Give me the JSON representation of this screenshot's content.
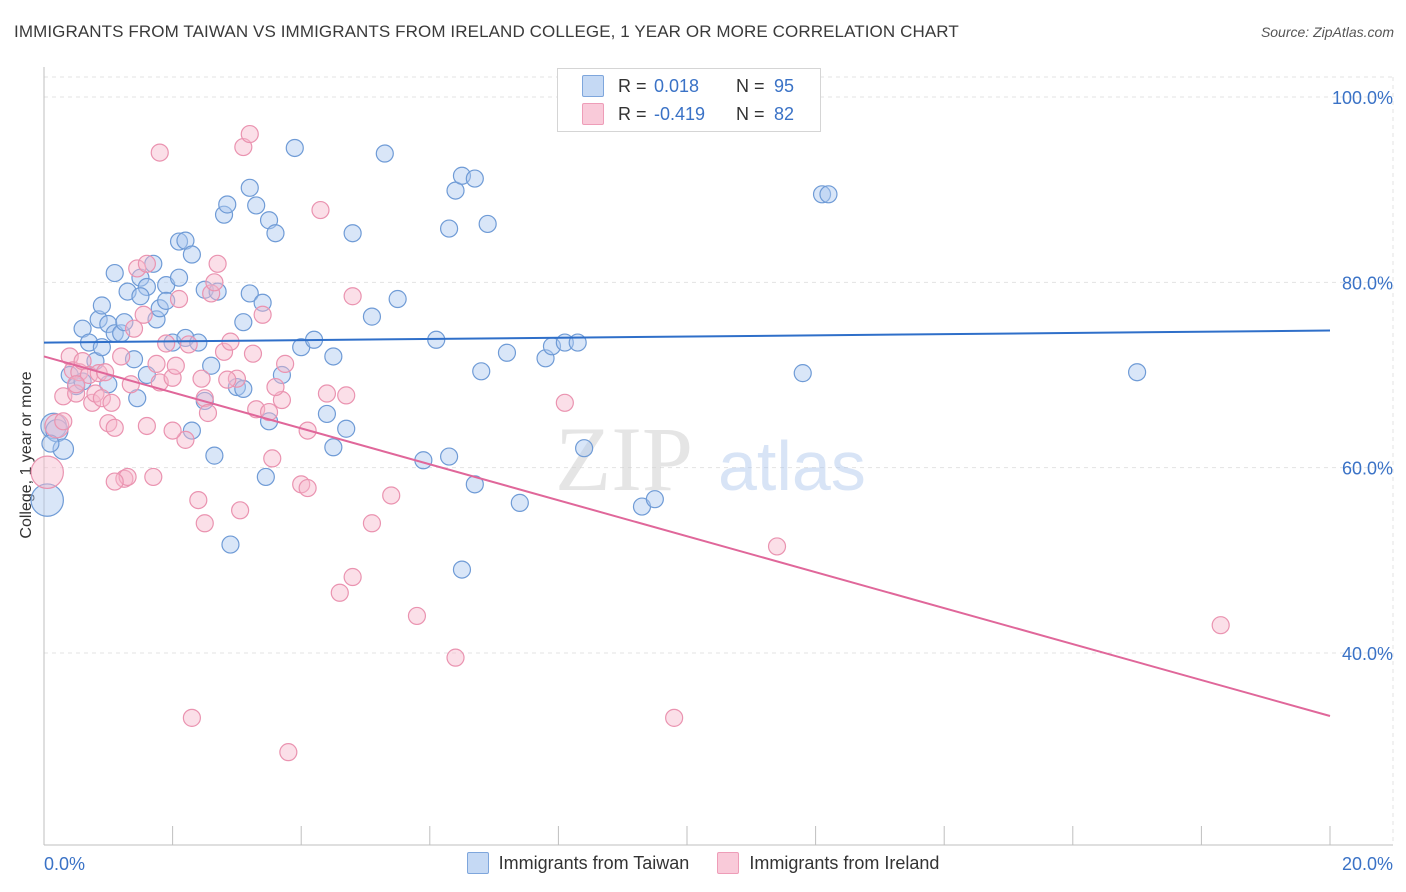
{
  "header": {
    "title": "IMMIGRANTS FROM TAIWAN VS IMMIGRANTS FROM IRELAND COLLEGE, 1 YEAR OR MORE CORRELATION CHART",
    "source": "Source: ZipAtlas.com"
  },
  "watermark": {
    "zip": "ZIP",
    "atlas": "atlas"
  },
  "legend": {
    "rows": [
      {
        "r_label": "R =",
        "r_value": "0.018",
        "n_label": "N =",
        "n_value": "95"
      },
      {
        "r_label": "R =",
        "r_value": "-0.419",
        "n_label": "N =",
        "n_value": "82"
      }
    ]
  },
  "colors": {
    "taiwan_fill": "#aac8ef",
    "taiwan_stroke": "#6f9bd6",
    "taiwan_line": "#2f6fc9",
    "ireland_fill": "#f6b8cc",
    "ireland_stroke": "#ea93b0",
    "ireland_line": "#e0679a",
    "axis_text": "#3a72c6",
    "grid": "#e3e3e3"
  },
  "chart_data": {
    "type": "scatter",
    "title": "IMMIGRANTS FROM TAIWAN VS IMMIGRANTS FROM IRELAND COLLEGE, 1 YEAR OR MORE CORRELATION CHART",
    "xlabel": "",
    "ylabel": "College, 1 year or more",
    "xlim": [
      0,
      20
    ],
    "ylim": [
      20,
      104
    ],
    "x_tick_labels": [
      "0.0%",
      "20.0%"
    ],
    "y_ticks": [
      40,
      60,
      80,
      100
    ],
    "y_tick_labels": [
      "40.0%",
      "60.0%",
      "80.0%",
      "100.0%"
    ],
    "legend_position": "top-center",
    "series": [
      {
        "name": "Immigrants from Taiwan",
        "R": 0.018,
        "N": 95,
        "trend": {
          "x": [
            0,
            20
          ],
          "y": [
            73.5,
            74.8
          ]
        },
        "points": [
          [
            0.05,
            56.5,
            1.9
          ],
          [
            0.15,
            64.5,
            1.5
          ],
          [
            0.2,
            64.0,
            1.3
          ],
          [
            0.3,
            62.0,
            1.2
          ],
          [
            0.1,
            62.6,
            1.0
          ],
          [
            0.4,
            70.0,
            1.0
          ],
          [
            0.5,
            68.8,
            1.0
          ],
          [
            0.6,
            75.0,
            1.0
          ],
          [
            0.7,
            73.5,
            1.0
          ],
          [
            0.8,
            71.5,
            1.0
          ],
          [
            0.9,
            73.0,
            1.0
          ],
          [
            0.85,
            76.0,
            1.0
          ],
          [
            0.9,
            77.5,
            1.0
          ],
          [
            1.0,
            75.5,
            1.0
          ],
          [
            1.0,
            69.0,
            1.0
          ],
          [
            1.1,
            81.0,
            1.0
          ],
          [
            1.1,
            74.5,
            1.0
          ],
          [
            1.2,
            74.5,
            1.0
          ],
          [
            1.25,
            75.7,
            1.0
          ],
          [
            1.3,
            79.0,
            1.0
          ],
          [
            1.4,
            71.7,
            1.0
          ],
          [
            1.45,
            67.5,
            1.0
          ],
          [
            1.5,
            80.5,
            1.0
          ],
          [
            1.6,
            79.5,
            1.0
          ],
          [
            1.6,
            70.0,
            1.0
          ],
          [
            1.7,
            82.0,
            1.0
          ],
          [
            1.75,
            76.0,
            1.0
          ],
          [
            1.8,
            77.2,
            1.0
          ],
          [
            1.9,
            79.7,
            1.0
          ],
          [
            1.9,
            78.0,
            1.0
          ],
          [
            2.0,
            73.5,
            1.0
          ],
          [
            2.1,
            80.5,
            1.0
          ],
          [
            2.1,
            84.4,
            1.0
          ],
          [
            2.2,
            84.5,
            1.0
          ],
          [
            2.2,
            74.0,
            1.0
          ],
          [
            2.3,
            83.0,
            1.0
          ],
          [
            2.3,
            64.0,
            1.0
          ],
          [
            2.4,
            73.5,
            1.0
          ],
          [
            2.5,
            79.2,
            1.0
          ],
          [
            2.5,
            67.2,
            1.0
          ],
          [
            2.6,
            71.0,
            1.0
          ],
          [
            2.65,
            61.3,
            1.0
          ],
          [
            2.7,
            79.0,
            1.0
          ],
          [
            2.8,
            87.3,
            1.0
          ],
          [
            2.85,
            88.4,
            1.0
          ],
          [
            2.9,
            51.7,
            1.0
          ],
          [
            3.0,
            68.7,
            1.0
          ],
          [
            3.1,
            68.5,
            1.0
          ],
          [
            3.1,
            75.7,
            1.0
          ],
          [
            3.2,
            78.8,
            1.0
          ],
          [
            3.2,
            90.2,
            1.0
          ],
          [
            3.3,
            88.3,
            1.0
          ],
          [
            3.4,
            77.8,
            1.0
          ],
          [
            3.45,
            59.0,
            1.0
          ],
          [
            3.5,
            65.0,
            1.0
          ],
          [
            3.5,
            86.7,
            1.0
          ],
          [
            3.6,
            85.3,
            1.0
          ],
          [
            3.7,
            70.0,
            1.0
          ],
          [
            3.9,
            94.5,
            1.0
          ],
          [
            4.0,
            73.0,
            1.0
          ],
          [
            4.2,
            73.8,
            1.0
          ],
          [
            4.4,
            65.8,
            1.0
          ],
          [
            4.5,
            72.0,
            1.0
          ],
          [
            4.5,
            62.2,
            1.0
          ],
          [
            4.7,
            64.2,
            1.0
          ],
          [
            4.8,
            85.3,
            1.0
          ],
          [
            5.1,
            76.3,
            1.0
          ],
          [
            5.3,
            93.9,
            1.0
          ],
          [
            5.5,
            78.2,
            1.0
          ],
          [
            5.9,
            60.8,
            1.0
          ],
          [
            6.1,
            73.8,
            1.0
          ],
          [
            6.3,
            85.8,
            1.0
          ],
          [
            6.3,
            61.2,
            1.0
          ],
          [
            6.4,
            89.9,
            1.0
          ],
          [
            6.5,
            91.5,
            1.0
          ],
          [
            6.5,
            49.0,
            1.0
          ],
          [
            6.7,
            91.2,
            1.0
          ],
          [
            6.7,
            58.2,
            1.0
          ],
          [
            6.8,
            70.4,
            1.0
          ],
          [
            6.9,
            86.3,
            1.0
          ],
          [
            7.2,
            72.4,
            1.0
          ],
          [
            7.4,
            56.2,
            1.0
          ],
          [
            7.8,
            71.8,
            1.0
          ],
          [
            7.9,
            73.1,
            1.0
          ],
          [
            8.1,
            73.5,
            1.0
          ],
          [
            8.3,
            73.5,
            1.0
          ],
          [
            8.4,
            62.1,
            1.0
          ],
          [
            9.3,
            55.8,
            1.0
          ],
          [
            9.5,
            56.6,
            1.0
          ],
          [
            11.8,
            70.2,
            1.0
          ],
          [
            12.1,
            89.5,
            1.0
          ],
          [
            12.2,
            89.5,
            1.0
          ],
          [
            17.0,
            70.3,
            1.0
          ],
          [
            0.6,
            69.3,
            1.0
          ],
          [
            1.5,
            78.5,
            1.0
          ]
        ]
      },
      {
        "name": "Immigrants from Ireland",
        "R": -0.419,
        "N": 82,
        "trend": {
          "x": [
            0,
            20
          ],
          "y": [
            72.0,
            33.2
          ]
        },
        "points": [
          [
            0.05,
            59.5,
            1.9
          ],
          [
            0.2,
            64.5,
            1.4
          ],
          [
            0.3,
            67.7,
            1.0
          ],
          [
            0.4,
            72.0,
            1.0
          ],
          [
            0.45,
            70.5,
            1.0
          ],
          [
            0.5,
            68.0,
            1.0
          ],
          [
            0.55,
            70.3,
            1.0
          ],
          [
            0.6,
            71.5,
            1.0
          ],
          [
            0.7,
            70.0,
            1.0
          ],
          [
            0.75,
            67.0,
            1.0
          ],
          [
            0.8,
            68.0,
            1.0
          ],
          [
            0.85,
            70.2,
            1.0
          ],
          [
            0.9,
            67.5,
            1.0
          ],
          [
            0.95,
            70.3,
            1.0
          ],
          [
            1.0,
            64.8,
            1.0
          ],
          [
            1.05,
            67.0,
            1.0
          ],
          [
            1.1,
            64.3,
            1.0
          ],
          [
            1.2,
            72.0,
            1.0
          ],
          [
            1.25,
            58.8,
            1.0
          ],
          [
            1.3,
            59.0,
            1.0
          ],
          [
            1.35,
            69.0,
            1.0
          ],
          [
            1.45,
            81.5,
            1.0
          ],
          [
            1.55,
            76.5,
            1.0
          ],
          [
            1.6,
            82.0,
            1.0
          ],
          [
            1.6,
            64.5,
            1.0
          ],
          [
            1.7,
            59.0,
            1.0
          ],
          [
            1.75,
            71.2,
            1.0
          ],
          [
            1.8,
            69.2,
            1.0
          ],
          [
            1.8,
            94.0,
            1.0
          ],
          [
            1.9,
            73.4,
            1.0
          ],
          [
            2.0,
            69.7,
            1.0
          ],
          [
            2.05,
            71.0,
            1.0
          ],
          [
            2.1,
            78.2,
            1.0
          ],
          [
            2.2,
            63.0,
            1.0
          ],
          [
            2.25,
            73.3,
            1.0
          ],
          [
            2.3,
            33.0,
            1.0
          ],
          [
            2.4,
            56.5,
            1.0
          ],
          [
            2.45,
            69.6,
            1.0
          ],
          [
            2.5,
            54.0,
            1.0
          ],
          [
            2.5,
            67.5,
            1.0
          ],
          [
            2.55,
            65.9,
            1.0
          ],
          [
            2.6,
            78.8,
            1.0
          ],
          [
            2.65,
            80.0,
            1.0
          ],
          [
            2.7,
            82.0,
            1.0
          ],
          [
            2.8,
            72.5,
            1.0
          ],
          [
            2.9,
            73.6,
            1.0
          ],
          [
            3.0,
            69.6,
            1.0
          ],
          [
            3.05,
            55.4,
            1.0
          ],
          [
            3.1,
            94.6,
            1.0
          ],
          [
            3.2,
            96.0,
            1.0
          ],
          [
            3.25,
            72.3,
            1.0
          ],
          [
            3.3,
            66.3,
            1.0
          ],
          [
            3.4,
            76.5,
            1.0
          ],
          [
            3.5,
            66.0,
            1.0
          ],
          [
            3.55,
            61.0,
            1.0
          ],
          [
            3.7,
            67.3,
            1.0
          ],
          [
            3.75,
            71.2,
            1.0
          ],
          [
            3.8,
            29.3,
            1.0
          ],
          [
            4.0,
            58.2,
            1.0
          ],
          [
            4.1,
            57.8,
            1.0
          ],
          [
            4.3,
            87.8,
            1.0
          ],
          [
            4.4,
            68.0,
            1.0
          ],
          [
            4.6,
            46.5,
            1.0
          ],
          [
            4.7,
            67.8,
            1.0
          ],
          [
            4.8,
            48.2,
            1.0
          ],
          [
            4.8,
            78.5,
            1.0
          ],
          [
            5.1,
            54.0,
            1.0
          ],
          [
            5.4,
            57.0,
            1.0
          ],
          [
            5.8,
            44.0,
            1.0
          ],
          [
            6.4,
            39.5,
            1.0
          ],
          [
            0.3,
            65.0,
            1.0
          ],
          [
            0.5,
            69.0,
            1.0
          ],
          [
            1.1,
            58.5,
            1.0
          ],
          [
            1.4,
            75.0,
            1.0
          ],
          [
            2.0,
            64.0,
            1.0
          ],
          [
            2.85,
            69.5,
            1.0
          ],
          [
            3.6,
            68.7,
            1.0
          ],
          [
            4.1,
            64.0,
            1.0
          ],
          [
            8.1,
            67.0,
            1.0
          ],
          [
            9.8,
            33.0,
            1.0
          ],
          [
            11.4,
            51.5,
            1.0
          ],
          [
            18.3,
            43.0,
            1.0
          ]
        ]
      }
    ]
  },
  "bottom_legend": [
    "Immigrants from Taiwan",
    "Immigrants from Ireland"
  ]
}
